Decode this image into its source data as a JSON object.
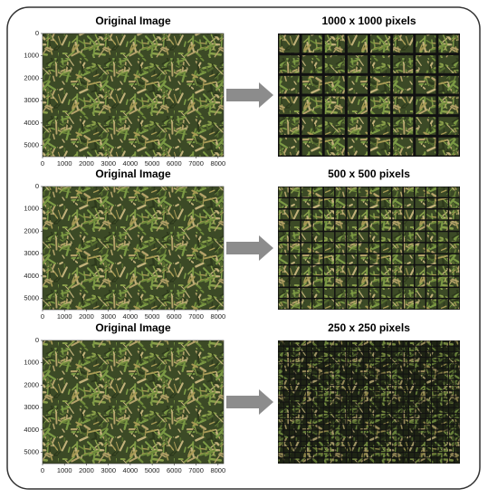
{
  "panels": [
    {
      "left_title": "Original Image",
      "right_title": "1000 x 1000 pixels",
      "x_ticks": [
        0,
        1000,
        2000,
        3000,
        4000,
        5000,
        6000,
        7000,
        8000
      ],
      "y_ticks": [
        0,
        1000,
        2000,
        3000,
        4000,
        5000
      ]
    },
    {
      "left_title": "Original Image",
      "right_title": "500 x 500 pixels",
      "x_ticks": [
        0,
        1000,
        2000,
        3000,
        4000,
        5000,
        6000,
        7000,
        8000
      ],
      "y_ticks": [
        0,
        1000,
        2000,
        3000,
        4000,
        5000
      ]
    },
    {
      "left_title": "Original Image",
      "right_title": "250 x 250 pixels",
      "x_ticks": [
        0,
        1000,
        2000,
        3000,
        4000,
        5000,
        6000,
        7000,
        8000
      ],
      "y_ticks": [
        0,
        1000,
        2000,
        3000,
        4000,
        5000
      ]
    }
  ]
}
